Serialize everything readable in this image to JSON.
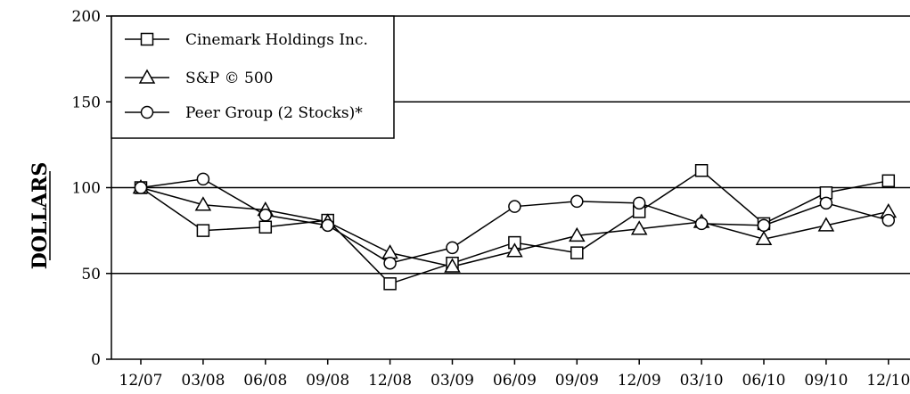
{
  "chart_data": {
    "type": "line",
    "title": "",
    "xlabel": "",
    "ylabel": "DOLLARS",
    "ylim": [
      0,
      200
    ],
    "yticks": [
      0,
      50,
      100,
      150,
      200
    ],
    "categories": [
      "12/07",
      "03/08",
      "06/08",
      "09/08",
      "12/08",
      "03/09",
      "06/09",
      "09/09",
      "12/09",
      "03/10",
      "06/10",
      "09/10",
      "12/10"
    ],
    "grid": "horizontal lines at 50, 100, 150, 200",
    "legend_position": "top-left",
    "series": [
      {
        "name": "Cinemark Holdings Inc.",
        "marker": "square",
        "values": [
          100,
          75,
          77,
          81,
          44,
          56,
          68,
          62,
          86,
          110,
          79,
          97,
          104
        ]
      },
      {
        "name": "S&P © 500",
        "marker": "triangle",
        "values": [
          100,
          90,
          87,
          80,
          62,
          54,
          63,
          72,
          76,
          80,
          70,
          78,
          86
        ]
      },
      {
        "name": "Peer Group (2 Stocks)*",
        "marker": "circle",
        "values": [
          100,
          105,
          84,
          78,
          56,
          65,
          89,
          92,
          91,
          79,
          78,
          91,
          81
        ]
      }
    ]
  }
}
